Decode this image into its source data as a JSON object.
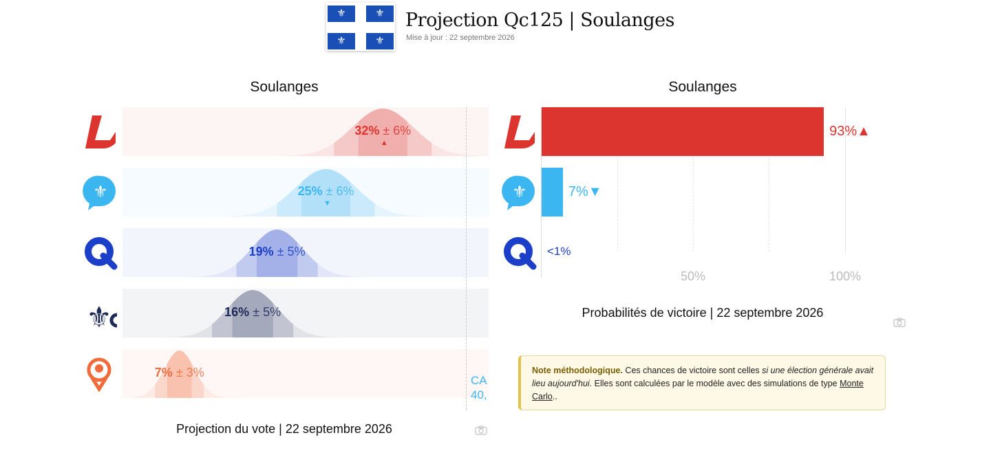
{
  "header": {
    "flag_glyph": "⚜",
    "title": "Projection Qc125 | Soulanges",
    "subtitle": "Mise à jour : 22 septembre 2026"
  },
  "left_panel": {
    "title": "Soulanges",
    "footer": "Projection du vote | 22 septembre 2026",
    "cutoff_text_line1": "CA",
    "cutoff_text_line2": "40,"
  },
  "right_panel": {
    "title": "Soulanges",
    "footer": "Probabilités de victoire | 22 septembre 2026",
    "axis_ticks": [
      "50%",
      "100%"
    ]
  },
  "parties": [
    {
      "icon": "plq-logo-icon",
      "color": "#dc3530",
      "vote_label": "32%",
      "moe_label": "± 6%",
      "trend": "▲",
      "win_label": "93%",
      "win_trend": "▲"
    },
    {
      "icon": "pq-logo-icon",
      "color": "#3cb6f0",
      "vote_label": "25%",
      "moe_label": "± 6%",
      "trend": "▼",
      "win_label": "7%",
      "win_trend": "▼"
    },
    {
      "icon": "caq-logo-icon",
      "color": "#1b3fc8",
      "vote_label": "19%",
      "moe_label": "± 5%",
      "trend": "",
      "win_label": "<1%",
      "win_trend": ""
    },
    {
      "icon": "pcq-logo-icon",
      "color": "#1d2a58",
      "vote_label": "16%",
      "moe_label": "± 5%",
      "trend": "",
      "win_label": "",
      "win_trend": ""
    },
    {
      "icon": "qs-logo-icon",
      "color": "#f06a3a",
      "vote_label": "7%",
      "moe_label": "± 3%",
      "trend": "",
      "win_label": "",
      "win_trend": ""
    }
  ],
  "note": {
    "title": "Note méthodologique.",
    "text1": " Ces chances de victoire sont celles ",
    "italic": "si une élection générale avait lieu aujourd'hui.",
    "text2": " Elles sont calculées par le modèle avec des simulations de type ",
    "link": "Monte Carlo",
    "text3": ".."
  },
  "chart_data": [
    {
      "type": "bar",
      "title": "Soulanges",
      "caption": "Projection du vote | 22 septembre 2026",
      "categories": [
        "PLQ",
        "PQ",
        "CAQ",
        "PCQ",
        "QS"
      ],
      "values": [
        32,
        25,
        19,
        16,
        7
      ],
      "error_margin": [
        6,
        6,
        5,
        5,
        3
      ],
      "trend": [
        "up",
        "down",
        "",
        "",
        ""
      ],
      "xlim": [
        0,
        45
      ],
      "colors": [
        "#dc3530",
        "#3cb6f0",
        "#1b3fc8",
        "#1d2a58",
        "#f06a3a"
      ]
    },
    {
      "type": "bar",
      "title": "Soulanges",
      "caption": "Probabilités de victoire | 22 septembre 2026",
      "categories": [
        "PLQ",
        "PQ",
        "CAQ"
      ],
      "values": [
        93,
        7,
        0.5
      ],
      "labels": [
        "93%",
        "7%",
        "<1%"
      ],
      "trend": [
        "up",
        "down",
        ""
      ],
      "xlim": [
        0,
        100
      ],
      "ticks": [
        50,
        100
      ],
      "grid": true,
      "colors": [
        "#dc3530",
        "#3cb6f0",
        "#1b3fc8"
      ]
    }
  ]
}
